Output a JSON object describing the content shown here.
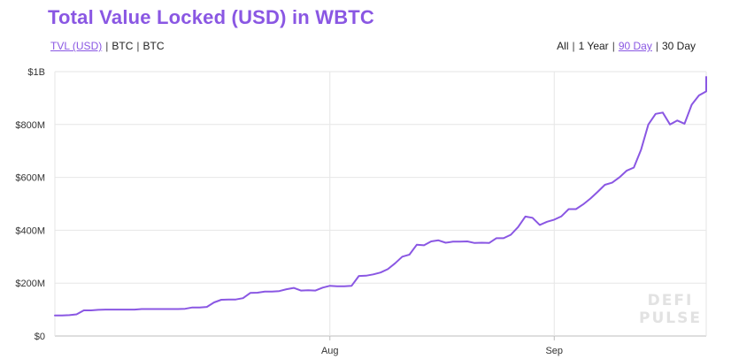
{
  "title": "Total Value Locked (USD) in WBTC",
  "metric_tabs": [
    {
      "label": "TVL (USD)",
      "active": true
    },
    {
      "label": "BTC",
      "active": false
    },
    {
      "label": "BTC",
      "active": false
    }
  ],
  "range_tabs": [
    {
      "label": "All",
      "active": false
    },
    {
      "label": "1 Year",
      "active": false
    },
    {
      "label": "90 Day",
      "active": true
    },
    {
      "label": "30 Day",
      "active": false
    }
  ],
  "separator": "|",
  "watermark": {
    "line1": "DEFI",
    "line2": "PULSE"
  },
  "colors": {
    "line": "#8a57e3",
    "grid": "#e6e6e6",
    "axis": "#bdbdbd",
    "accent": "#8a57e3"
  },
  "chart_data": {
    "type": "line",
    "title": "Total Value Locked (USD) in WBTC",
    "xlabel": "",
    "ylabel": "",
    "ylim": [
      0,
      1000
    ],
    "y_unit": "USD millions",
    "y_ticks": [
      {
        "value": 0,
        "label": "$0"
      },
      {
        "value": 200,
        "label": "$200M"
      },
      {
        "value": 400,
        "label": "$400M"
      },
      {
        "value": 600,
        "label": "$600M"
      },
      {
        "value": 800,
        "label": "$800M"
      },
      {
        "value": 1000,
        "label": "$1B"
      }
    ],
    "x_range": [
      "2020-06-24",
      "2020-09-22"
    ],
    "x_ticks": [
      {
        "value": "2020-08-01",
        "label": "Aug"
      },
      {
        "value": "2020-09-01",
        "label": "Sep"
      }
    ],
    "grid": true,
    "series": [
      {
        "color": "#8a57e3",
        "points": [
          [
            "2020-06-24",
            78
          ],
          [
            "2020-06-25",
            78
          ],
          [
            "2020-06-26",
            79
          ],
          [
            "2020-06-27",
            82
          ],
          [
            "2020-06-28",
            97
          ],
          [
            "2020-06-29",
            97
          ],
          [
            "2020-06-30",
            99
          ],
          [
            "2020-07-01",
            100
          ],
          [
            "2020-07-02",
            100
          ],
          [
            "2020-07-03",
            100
          ],
          [
            "2020-07-04",
            100
          ],
          [
            "2020-07-05",
            100
          ],
          [
            "2020-07-06",
            102
          ],
          [
            "2020-07-07",
            102
          ],
          [
            "2020-07-08",
            102
          ],
          [
            "2020-07-09",
            102
          ],
          [
            "2020-07-10",
            102
          ],
          [
            "2020-07-11",
            102
          ],
          [
            "2020-07-12",
            103
          ],
          [
            "2020-07-13",
            108
          ],
          [
            "2020-07-14",
            108
          ],
          [
            "2020-07-15",
            110
          ],
          [
            "2020-07-16",
            127
          ],
          [
            "2020-07-17",
            137
          ],
          [
            "2020-07-18",
            138
          ],
          [
            "2020-07-19",
            138
          ],
          [
            "2020-07-20",
            143
          ],
          [
            "2020-07-21",
            163
          ],
          [
            "2020-07-22",
            164
          ],
          [
            "2020-07-23",
            168
          ],
          [
            "2020-07-24",
            168
          ],
          [
            "2020-07-25",
            170
          ],
          [
            "2020-07-26",
            177
          ],
          [
            "2020-07-27",
            182
          ],
          [
            "2020-07-28",
            172
          ],
          [
            "2020-07-29",
            173
          ],
          [
            "2020-07-30",
            172
          ],
          [
            "2020-07-31",
            183
          ],
          [
            "2020-08-01",
            190
          ],
          [
            "2020-08-02",
            188
          ],
          [
            "2020-08-03",
            188
          ],
          [
            "2020-08-04",
            190
          ],
          [
            "2020-08-05",
            227
          ],
          [
            "2020-08-06",
            228
          ],
          [
            "2020-08-07",
            233
          ],
          [
            "2020-08-08",
            240
          ],
          [
            "2020-08-09",
            253
          ],
          [
            "2020-08-10",
            275
          ],
          [
            "2020-08-11",
            300
          ],
          [
            "2020-08-12",
            308
          ],
          [
            "2020-08-13",
            345
          ],
          [
            "2020-08-14",
            343
          ],
          [
            "2020-08-15",
            358
          ],
          [
            "2020-08-16",
            362
          ],
          [
            "2020-08-17",
            353
          ],
          [
            "2020-08-18",
            357
          ],
          [
            "2020-08-19",
            357
          ],
          [
            "2020-08-20",
            358
          ],
          [
            "2020-08-21",
            352
          ],
          [
            "2020-08-22",
            353
          ],
          [
            "2020-08-23",
            352
          ],
          [
            "2020-08-24",
            370
          ],
          [
            "2020-08-25",
            370
          ],
          [
            "2020-08-26",
            383
          ],
          [
            "2020-08-27",
            412
          ],
          [
            "2020-08-28",
            452
          ],
          [
            "2020-08-29",
            447
          ],
          [
            "2020-08-30",
            420
          ],
          [
            "2020-08-31",
            432
          ],
          [
            "2020-09-01",
            440
          ],
          [
            "2020-09-02",
            453
          ],
          [
            "2020-09-03",
            480
          ],
          [
            "2020-09-04",
            480
          ],
          [
            "2020-09-05",
            498
          ],
          [
            "2020-09-06",
            520
          ],
          [
            "2020-09-07",
            545
          ],
          [
            "2020-09-08",
            572
          ],
          [
            "2020-09-09",
            580
          ],
          [
            "2020-09-10",
            600
          ],
          [
            "2020-09-11",
            625
          ],
          [
            "2020-09-12",
            637
          ],
          [
            "2020-09-13",
            705
          ],
          [
            "2020-09-14",
            800
          ],
          [
            "2020-09-15",
            840
          ],
          [
            "2020-09-16",
            845
          ],
          [
            "2020-09-17",
            800
          ],
          [
            "2020-09-18",
            815
          ],
          [
            "2020-09-19",
            803
          ],
          [
            "2020-09-20",
            875
          ],
          [
            "2020-09-21",
            910
          ],
          [
            "2020-09-22",
            925
          ],
          [
            "2020-09-23",
            932
          ],
          [
            "2020-09-24",
            980
          ]
        ]
      }
    ]
  }
}
